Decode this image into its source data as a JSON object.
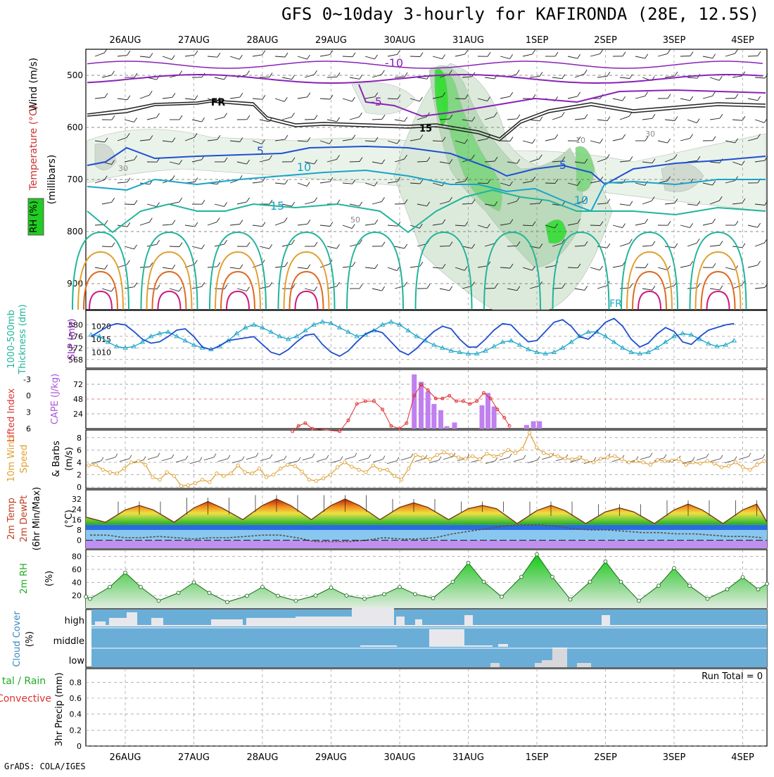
{
  "title": "GFS 0~10day 3-hourly for KAFIRONDA (28E, 12.5S)",
  "credit": "GrADS: COLA/IGES",
  "colors": {
    "purple": "#8a22b8",
    "blue": "#1f4fd0",
    "cyan": "#18a4c8",
    "teal": "#20b49a",
    "orange": "#e0a030",
    "darkorange": "#e06820",
    "magenta": "#cc1a80",
    "green": "#22cc22",
    "grey": "#9aa89a",
    "sky": "#6aaed8",
    "cloud": "#e8e8ec"
  },
  "chart_data": [
    {
      "name": "upper-air",
      "type": "contour",
      "ylabel": "(millibars)",
      "title_labels": [
        "Wind (m/s)",
        "Temperature (°C)",
        "RH (%)"
      ],
      "x_dates": [
        "26AUG",
        "27AUG",
        "28AUG",
        "29AUG",
        "30AUG",
        "31AUG",
        "1SEP",
        "2SEP",
        "3SEP",
        "4SEP"
      ],
      "y_ticks": [
        500,
        600,
        700,
        800,
        900
      ],
      "ylim": [
        450,
        950
      ],
      "contour_labels": [
        "-10",
        "-5",
        "5",
        "10",
        "15",
        "10",
        "5",
        "FR",
        "FR",
        "15",
        "30",
        "50",
        "10",
        "30"
      ]
    },
    {
      "name": "thickness-slp",
      "type": "line",
      "ylabel_left": "1000-500mb Thickness (dm)",
      "ylabel_right": "SLP (mb)",
      "left_ticks": [
        568,
        572,
        576,
        580
      ],
      "right_ticks": [
        1010,
        1015,
        1020
      ],
      "series": [
        {
          "name": "Thickness",
          "values": [
            576.5,
            576.0,
            574.0,
            572.5,
            572.0,
            572.5,
            574.0,
            576.0,
            577.0,
            577.5,
            576.0,
            574.5,
            573.0,
            572.0,
            571.5,
            572.5,
            574.5,
            577.0,
            579.0,
            580.0,
            579.0,
            577.5,
            576.0,
            575.0,
            576.0,
            578.0,
            580.0,
            581.0,
            580.5,
            579.0,
            577.5,
            576.0,
            576.5,
            578.0,
            580.0,
            581.0,
            580.0,
            578.0,
            576.0,
            574.5,
            573.0,
            572.0,
            571.0,
            570.5,
            570.0,
            570.0,
            571.0,
            572.5,
            574.0,
            574.5,
            573.0,
            571.5,
            570.5,
            570.0,
            570.5,
            572.0,
            574.0,
            576.0,
            577.5,
            577.5,
            576.0,
            574.0,
            572.0,
            570.5,
            570.0,
            570.5,
            572.0,
            574.0,
            576.0,
            577.0,
            576.5,
            575.0,
            573.5,
            572.5,
            573.0,
            574.5
          ]
        },
        {
          "name": "SLP",
          "values": [
            1016.0,
            1018.0,
            1020.0,
            1021.0,
            1020.5,
            1018.0,
            1015.0,
            1013.5,
            1014.0,
            1016.0,
            1018.5,
            1019.0,
            1016.0,
            1012.0,
            1011.0,
            1012.5,
            1014.5,
            1015.0,
            1015.5,
            1016.0,
            1013.0,
            1010.0,
            1009.0,
            1011.0,
            1014.0,
            1016.5,
            1017.0,
            1013.0,
            1010.0,
            1008.5,
            1010.5,
            1014.0,
            1017.0,
            1018.5,
            1017.5,
            1014.0,
            1010.5,
            1009.0,
            1011.5,
            1015.0,
            1018.0,
            1020.0,
            1019.0,
            1015.0,
            1012.0,
            1012.0,
            1015.0,
            1018.5,
            1021.0,
            1020.5,
            1017.0,
            1014.0,
            1014.5,
            1018.0,
            1021.5,
            1022.5,
            1020.0,
            1016.0,
            1015.0,
            1018.0,
            1021.5,
            1023.0,
            1020.0,
            1015.0,
            1012.0,
            1013.5,
            1017.0,
            1019.5,
            1018.0,
            1014.0,
            1013.0,
            1016.0,
            1018.5,
            1019.5,
            1020.5,
            1021.0
          ]
        }
      ]
    },
    {
      "name": "cape-lifted-index",
      "type": "bar",
      "ylabel_left": "Lifted Index",
      "ylabel_right": "CAPE (J/kg)",
      "li_ticks": [
        "-3",
        "0",
        "3",
        "6"
      ],
      "cape_ticks": [
        "24",
        "48",
        "72"
      ],
      "cape_bars": [
        {
          "x": 37.7,
          "value": 88
        },
        {
          "x": 38.5,
          "value": 76
        },
        {
          "x": 39.3,
          "value": 60
        },
        {
          "x": 40.0,
          "value": 40
        },
        {
          "x": 40.8,
          "value": 30
        },
        {
          "x": 41.5,
          "value": 4
        },
        {
          "x": 42.4,
          "value": 10
        },
        {
          "x": 45.6,
          "value": 38
        },
        {
          "x": 46.3,
          "value": 58
        },
        {
          "x": 47.0,
          "value": 36
        },
        {
          "x": 50.8,
          "value": 6
        },
        {
          "x": 51.6,
          "value": 12
        },
        {
          "x": 52.3,
          "value": 12
        }
      ],
      "li_values": [
        [
          23.5,
          6.5
        ],
        [
          24.2,
          5.5
        ],
        [
          25.0,
          5.0
        ],
        [
          25.8,
          6.0
        ],
        [
          29.0,
          6.5
        ],
        [
          30.0,
          4.5
        ],
        [
          31.0,
          1.5
        ],
        [
          32.0,
          1.0
        ],
        [
          33.0,
          1.0
        ],
        [
          34.0,
          2.5
        ],
        [
          35.0,
          5.5
        ],
        [
          36.0,
          6.0
        ],
        [
          36.8,
          5.0
        ],
        [
          37.7,
          0.0
        ],
        [
          38.5,
          -2.0
        ],
        [
          39.3,
          -1.0
        ],
        [
          40.2,
          0.5
        ],
        [
          41.0,
          0.5
        ],
        [
          41.8,
          0.0
        ],
        [
          42.6,
          1.0
        ],
        [
          43.4,
          1.0
        ],
        [
          44.2,
          1.5
        ],
        [
          45.0,
          1.0
        ],
        [
          45.8,
          -0.5
        ],
        [
          46.6,
          0.5
        ],
        [
          47.4,
          2.5
        ],
        [
          48.2,
          4.0
        ],
        [
          48.8,
          5.5
        ]
      ]
    },
    {
      "name": "wind10m",
      "type": "line",
      "ylabel": "10m Wind Speed & Barbs (m/s)",
      "y_ticks": [
        0,
        2,
        4,
        6,
        8
      ],
      "values": [
        3.5,
        3.6,
        2.8,
        2.4,
        2.2,
        3.0,
        4.0,
        4.2,
        3.6,
        1.6,
        1.2,
        2.4,
        1.8,
        0.2,
        0.3,
        0.6,
        1.2,
        0.8,
        2.2,
        1.8,
        2.2,
        3.5,
        2.4,
        2.2,
        3.0,
        1.6,
        2.0,
        3.0,
        3.6,
        3.4,
        2.5,
        1.2,
        1.0,
        1.4,
        2.0,
        3.2,
        4.0,
        3.3,
        2.8,
        2.4,
        3.5,
        2.8,
        2.8,
        1.8,
        1.2,
        3.0,
        5.2,
        4.8,
        4.5,
        5.2,
        5.6,
        5.2,
        4.8,
        4.6,
        5.0,
        4.5,
        5.4,
        5.0,
        5.2,
        6.0,
        5.5,
        6.2,
        8.8,
        6.4,
        5.5,
        5.2,
        5.0,
        4.6,
        4.5,
        4.8,
        4.2,
        4.0,
        4.6,
        4.8,
        5.0,
        4.5,
        4.0,
        4.2,
        4.0,
        3.6,
        4.4,
        4.2,
        4.3,
        4.5,
        3.6,
        4.0,
        3.8,
        4.2,
        3.8,
        3.2,
        3.4,
        4.0,
        3.2,
        2.8,
        3.6,
        4.2
      ]
    },
    {
      "name": "temp2m",
      "type": "area",
      "ylabel": "2m Temp 2m DewPt (6hr Min/Max) (°C)",
      "y_ticks": [
        0,
        8,
        16,
        24,
        32
      ],
      "temp_peaks": [
        27,
        30,
        32,
        32,
        29,
        27,
        27,
        25,
        28,
        28
      ],
      "temp_troughs": [
        14,
        14,
        16,
        16,
        16,
        16,
        13,
        13,
        13,
        13
      ],
      "dewpoint": [
        4,
        4,
        2,
        2,
        3,
        2,
        1,
        2,
        2,
        3,
        4,
        4,
        2,
        -1,
        -1,
        -1,
        0,
        2,
        1,
        1,
        2,
        5,
        7,
        9,
        11,
        12,
        12,
        11,
        9,
        8,
        8,
        7,
        6,
        6,
        5,
        5,
        4,
        3,
        3,
        2
      ]
    },
    {
      "name": "rh2m",
      "type": "area",
      "ylabel": "2m RH (%)",
      "y_ticks": [
        20,
        40,
        60,
        80
      ],
      "rh_peaks": [
        55,
        40,
        33,
        32,
        33,
        70,
        83,
        72,
        62,
        48
      ],
      "rh_troughs": [
        15,
        12,
        10,
        12,
        15,
        16,
        18,
        14,
        12,
        15
      ]
    },
    {
      "name": "cloud-cover",
      "type": "heatmap",
      "ylabel": "Cloud Cover (%)",
      "levels": [
        "high",
        "middle",
        "low"
      ]
    },
    {
      "name": "precip",
      "type": "bar",
      "ylabel_left": "Total / Rain Convective",
      "ylabel": "3hr Precip (mm)",
      "y_ticks": [
        "0",
        "0.2",
        "0.4",
        "0.6",
        "0.8"
      ],
      "run_total": "Run Total = 0"
    }
  ],
  "panel_labels": {
    "p1_wind": "Wind (m/s)",
    "p1_temp": "Temperature (°C)",
    "p1_rh": "RH (%)",
    "p1_mb": "(millibars)",
    "p2_left": "1000-500mb",
    "p2_left2": "Thickness (dm)",
    "p2_right": "SLP (mb)",
    "p3_left": "Lifted Index",
    "p3_right": "CAPE (J/kg)",
    "p4_a": "10m Wind",
    "p4_b": "Speed",
    "p4_c": "& Barbs",
    "p4_d": "(m/s)",
    "p5_a": "2m Temp",
    "p5_b": "2m DewPt",
    "p5_c": "(6hr Min/Max)",
    "p5_d": "(°C)",
    "p6_a": "2m RH",
    "p6_b": "(%)",
    "p7_a": "Cloud Cover",
    "p7_b": "(%)",
    "p8_a": "tal / Rain",
    "p8_b": "Convective",
    "p8_c": "3hr Precip (mm)"
  }
}
